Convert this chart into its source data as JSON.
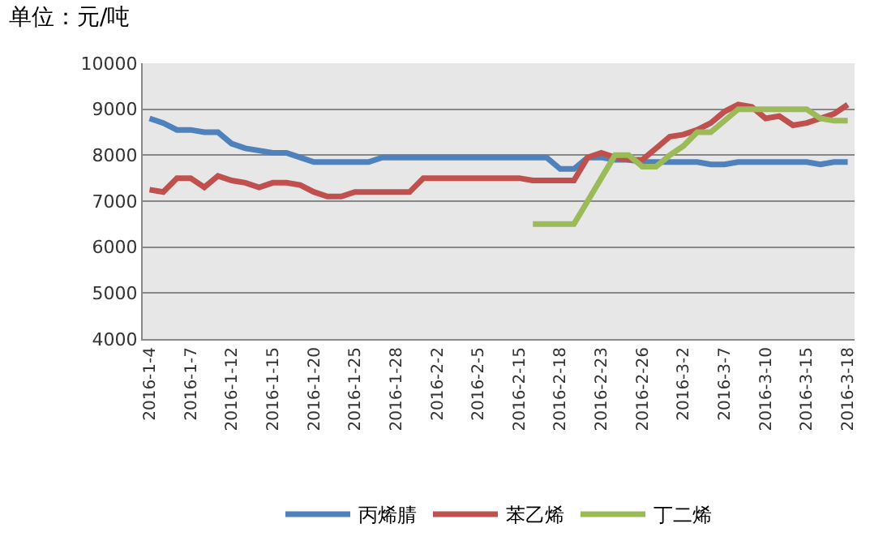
{
  "chart_data": {
    "type": "line",
    "title": "单位：元/吨",
    "categories": [
      "2016-1-4",
      null,
      null,
      "2016-1-7",
      null,
      null,
      "2016-1-12",
      null,
      null,
      "2016-1-15",
      null,
      null,
      "2016-1-20",
      null,
      null,
      "2016-1-25",
      null,
      null,
      "2016-1-28",
      null,
      null,
      "2016-2-2",
      null,
      null,
      "2016-2-5",
      null,
      null,
      "2016-2-15",
      null,
      null,
      "2016-2-18",
      null,
      null,
      "2016-2-23",
      null,
      null,
      "2016-2-26",
      null,
      null,
      "2016-3-2",
      null,
      null,
      "2016-3-7",
      null,
      null,
      "2016-3-10",
      null,
      null,
      "2016-3-15",
      null,
      null,
      "2016-3-18"
    ],
    "series": [
      {
        "name": "丙烯腈",
        "color": "#4f81bd",
        "values": [
          8800,
          8700,
          8550,
          8550,
          8500,
          8500,
          8250,
          8150,
          8100,
          8050,
          8050,
          7950,
          7850,
          7850,
          7850,
          7850,
          7850,
          7950,
          7950,
          7950,
          7950,
          7950,
          7950,
          7950,
          7950,
          7950,
          7950,
          7950,
          7950,
          7950,
          7700,
          7700,
          7950,
          7950,
          7900,
          7900,
          7850,
          7850,
          7850,
          7850,
          7850,
          7800,
          7800,
          7850,
          7850,
          7850,
          7850,
          7850,
          7850,
          7800,
          7850,
          7850
        ]
      },
      {
        "name": "苯乙烯",
        "color": "#c0504d",
        "values": [
          7250,
          7200,
          7500,
          7500,
          7300,
          7550,
          7450,
          7400,
          7300,
          7400,
          7400,
          7350,
          7200,
          7100,
          7100,
          7200,
          7200,
          7200,
          7200,
          7200,
          7500,
          7500,
          7500,
          7500,
          7500,
          7500,
          7500,
          7500,
          7450,
          7450,
          7450,
          7450,
          7950,
          8050,
          7950,
          7900,
          7900,
          8150,
          8400,
          8450,
          8550,
          8700,
          8950,
          9100,
          9050,
          8800,
          8850,
          8650,
          8700,
          8800,
          8900,
          9100
        ]
      },
      {
        "name": "丁二烯",
        "color": "#9bbb59",
        "values": [
          null,
          null,
          null,
          null,
          null,
          null,
          null,
          null,
          null,
          null,
          null,
          null,
          null,
          null,
          null,
          null,
          null,
          null,
          null,
          null,
          null,
          null,
          null,
          null,
          null,
          null,
          null,
          null,
          6500,
          6500,
          6500,
          6500,
          7000,
          7500,
          8000,
          8000,
          7750,
          7750,
          8000,
          8200,
          8500,
          8500,
          8750,
          9000,
          9000,
          9000,
          9000,
          9000,
          9000,
          8800,
          8750,
          8750
        ]
      }
    ],
    "ylim": [
      4000,
      10000
    ],
    "yticks": [
      4000,
      5000,
      6000,
      7000,
      8000,
      9000,
      10000
    ],
    "grid": "y",
    "legend": "bottom",
    "marker": "none",
    "line_style": "solid"
  }
}
